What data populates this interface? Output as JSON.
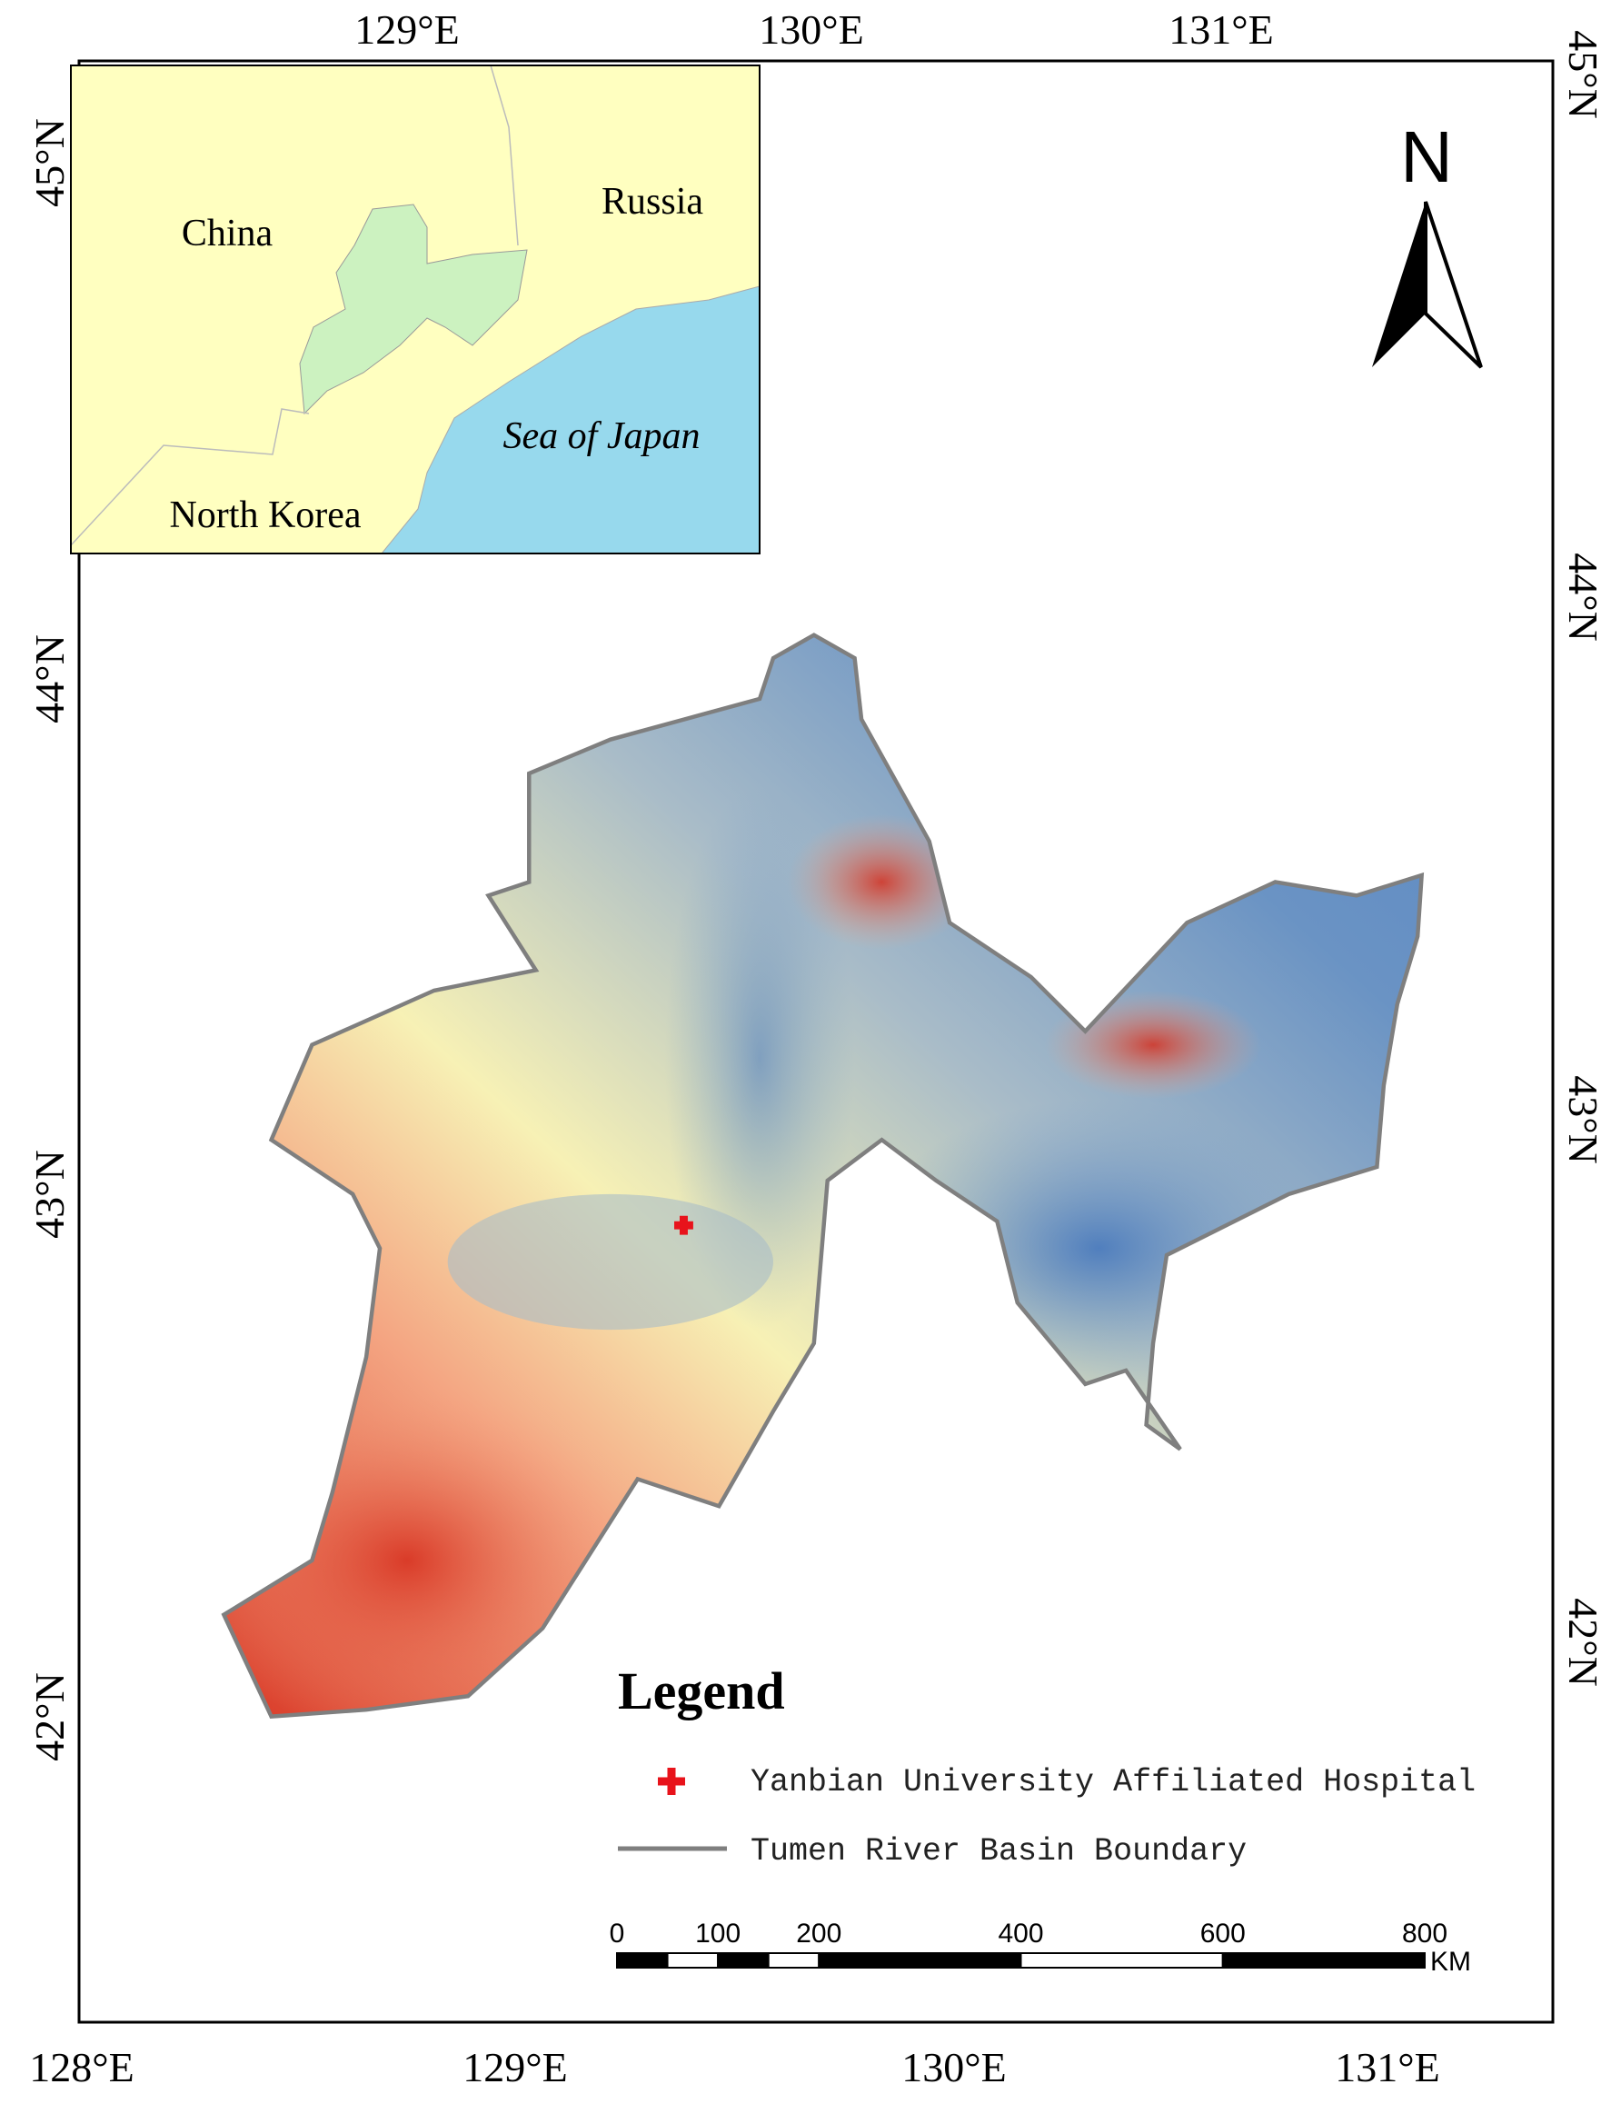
{
  "axes": {
    "top": [
      "129°E",
      "130°E",
      "131°E"
    ],
    "bottom": [
      "128°E",
      "129°E",
      "130°E",
      "131°E"
    ],
    "left": [
      "45°N",
      "44°N",
      "43°N",
      "42°N"
    ],
    "right": [
      "45°N",
      "44°N",
      "43°N",
      "42°N"
    ]
  },
  "inset": {
    "labels": [
      "China",
      "Russia",
      "Sea of Japan",
      "North Korea"
    ]
  },
  "north_arrow": "N",
  "legend": {
    "title": "Legend",
    "items": [
      "Yanbian University Affiliated Hospital",
      "Tumen River Basin Boundary"
    ]
  },
  "scale_bar": {
    "labels": [
      0,
      100,
      200,
      400,
      600,
      800
    ],
    "unit": "KM"
  }
}
